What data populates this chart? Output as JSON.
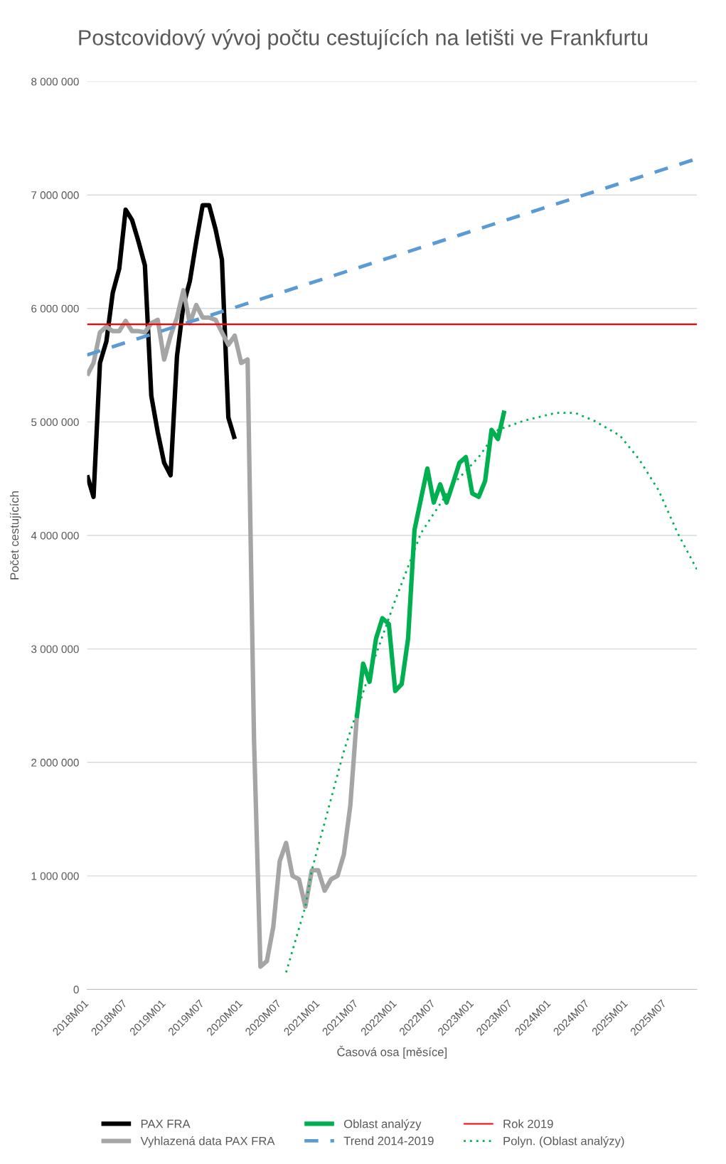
{
  "chart_data": {
    "type": "line",
    "title": "Postcovidový vývoj počtu cestujících na letišti ve Frankfurtu",
    "xlabel": "Časová osa [měsíce]",
    "ylabel": "Počet cestujících",
    "xlim": [
      "2018-01",
      "2025-12"
    ],
    "xticks": [
      {
        "value": "2018-01",
        "label": "2018M01"
      },
      {
        "value": "2018-07",
        "label": "2018M07"
      },
      {
        "value": "2019-01",
        "label": "2019M01"
      },
      {
        "value": "2019-07",
        "label": "2019M07"
      },
      {
        "value": "2020-01",
        "label": "2020M01"
      },
      {
        "value": "2020-07",
        "label": "2020M07"
      },
      {
        "value": "2021-01",
        "label": "2021M01"
      },
      {
        "value": "2021-07",
        "label": "2021M07"
      },
      {
        "value": "2022-01",
        "label": "2022M01"
      },
      {
        "value": "2022-07",
        "label": "2022M07"
      },
      {
        "value": "2023-01",
        "label": "2023M01"
      },
      {
        "value": "2023-07",
        "label": "2023M07"
      },
      {
        "value": "2024-01",
        "label": "2024M01"
      },
      {
        "value": "2024-07",
        "label": "2024M07"
      },
      {
        "value": "2025-01",
        "label": "2025M01"
      },
      {
        "value": "2025-07",
        "label": "2025M07"
      }
    ],
    "ylim": [
      0,
      8000000
    ],
    "yticks": [
      0,
      {
        "value": 1000000,
        "label": "1 000 000"
      },
      {
        "value": 2000000,
        "label": "2 000 000"
      },
      {
        "value": 3000000,
        "label": "3 000 000"
      },
      {
        "value": 4000000,
        "label": "4 000 000"
      },
      {
        "value": 5000000,
        "label": "5 000 000"
      },
      {
        "value": 6000000,
        "label": "6 000 000"
      },
      {
        "value": 7000000,
        "label": "7 000 000"
      },
      {
        "value": 8000000,
        "label": "8 000 000"
      }
    ],
    "grid": "y",
    "legend": "bottom",
    "series": [
      {
        "name": "PAX FRA",
        "color": "#000000",
        "line_style": "solid",
        "x": [
          "2018-01",
          "2018-02",
          "2018-03",
          "2018-04",
          "2018-05",
          "2018-06",
          "2018-07",
          "2018-08",
          "2018-09",
          "2018-10",
          "2018-11",
          "2018-12",
          "2019-01",
          "2019-02",
          "2019-03",
          "2019-04",
          "2019-05",
          "2019-06",
          "2019-07",
          "2019-08",
          "2019-09",
          "2019-10",
          "2019-11",
          "2019-12"
        ],
        "values": [
          4530000,
          4340000,
          5520000,
          5710000,
          6140000,
          6350000,
          6870000,
          6780000,
          6590000,
          6380000,
          5230000,
          4910000,
          4640000,
          4530000,
          5580000,
          6030000,
          6240000,
          6590000,
          6910000,
          6910000,
          6700000,
          6430000,
          5040000,
          4850000
        ]
      },
      {
        "name": "Vyhlazená data PAX FRA",
        "color": "#a5a5a5",
        "line_style": "solid",
        "x": [
          "2018-01",
          "2018-02",
          "2018-03",
          "2018-04",
          "2018-05",
          "2018-06",
          "2018-07",
          "2018-08",
          "2018-09",
          "2018-10",
          "2018-11",
          "2018-12",
          "2019-01",
          "2019-02",
          "2019-03",
          "2019-04",
          "2019-05",
          "2019-06",
          "2019-07",
          "2019-08",
          "2019-09",
          "2019-10",
          "2019-11",
          "2019-12",
          "2020-01",
          "2020-02",
          "2020-03",
          "2020-04",
          "2020-05",
          "2020-06",
          "2020-07",
          "2020-08",
          "2020-09",
          "2020-10",
          "2020-11",
          "2020-12",
          "2021-01",
          "2021-02",
          "2021-03",
          "2021-04",
          "2021-05",
          "2021-06",
          "2021-07"
        ],
        "values": [
          5410000,
          5520000,
          5790000,
          5840000,
          5800000,
          5800000,
          5890000,
          5800000,
          5800000,
          5790000,
          5870000,
          5900000,
          5550000,
          5760000,
          5920000,
          6160000,
          5870000,
          6030000,
          5920000,
          5920000,
          5900000,
          5790000,
          5680000,
          5760000,
          5520000,
          5550000,
          2200000,
          200000,
          250000,
          550000,
          1130000,
          1290000,
          1000000,
          970000,
          730000,
          1050000,
          1050000,
          870000,
          970000,
          1000000,
          1190000,
          1620000,
          2390000
        ]
      },
      {
        "name": "Oblast analýzy",
        "color": "#00b050",
        "line_style": "solid",
        "x": [
          "2021-07",
          "2021-08",
          "2021-09",
          "2021-10",
          "2021-11",
          "2021-12",
          "2022-01",
          "2022-02",
          "2022-03",
          "2022-04",
          "2022-05",
          "2022-06",
          "2022-07",
          "2022-08",
          "2022-09",
          "2022-10",
          "2022-11",
          "2022-12",
          "2023-01",
          "2023-02",
          "2023-03",
          "2023-04",
          "2023-05",
          "2023-06"
        ],
        "values": [
          2390000,
          2870000,
          2710000,
          3090000,
          3270000,
          3220000,
          2630000,
          2690000,
          3090000,
          4050000,
          4320000,
          4590000,
          4290000,
          4450000,
          4290000,
          4460000,
          4640000,
          4690000,
          4370000,
          4340000,
          4480000,
          4930000,
          4850000,
          5100000
        ]
      },
      {
        "name": "Trend 2014-2019",
        "color": "#5b9bd5",
        "line_style": "dashed",
        "x": [
          "2018-01",
          "2025-12"
        ],
        "values": [
          5590000,
          7320000
        ]
      },
      {
        "name": "Rok 2019",
        "color": "#ff0000",
        "line_style": "solid",
        "x": [
          "2018-01",
          "2025-12"
        ],
        "values": [
          5860000,
          5860000
        ]
      },
      {
        "name": "Polyn. (Oblast analýzy)",
        "color": "#00b050",
        "line_style": "dotted",
        "x": [
          "2020-08",
          "2020-11",
          "2020-12",
          "2021-05",
          "2021-09",
          "2022-01",
          "2022-05",
          "2022-10",
          "2023-02",
          "2023-05",
          "2023-09",
          "2024-02",
          "2024-05",
          "2024-08",
          "2024-12",
          "2025-03",
          "2025-06",
          "2025-09",
          "2025-12"
        ],
        "values": [
          150000,
          730000,
          1050000,
          2100000,
          2790000,
          3430000,
          4020000,
          4450000,
          4690000,
          4930000,
          5010000,
          5080000,
          5080000,
          5010000,
          4880000,
          4670000,
          4400000,
          4020000,
          3700000
        ]
      }
    ]
  }
}
